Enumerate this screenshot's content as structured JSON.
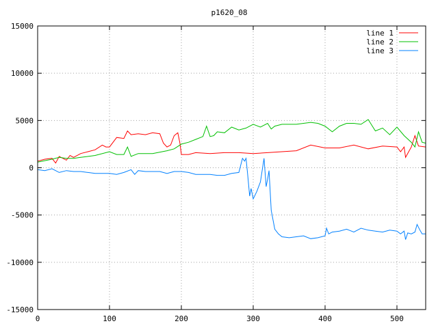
{
  "chart_data": {
    "type": "line",
    "title": "p1620_08",
    "xlabel": "",
    "ylabel": "",
    "xlim": [
      0,
      540
    ],
    "ylim": [
      -15000,
      15000
    ],
    "xticks": [
      0,
      100,
      200,
      300,
      400,
      500
    ],
    "yticks": [
      15000,
      10000,
      5000,
      0,
      -5000,
      -10000,
      -15000
    ],
    "grid": true,
    "legend_position": "top-right",
    "series": [
      {
        "name": "line 1",
        "color": "#ff0000",
        "x": [
          0,
          10,
          20,
          25,
          30,
          40,
          45,
          50,
          60,
          70,
          80,
          90,
          95,
          100,
          110,
          120,
          125,
          130,
          140,
          150,
          160,
          170,
          175,
          180,
          185,
          190,
          195,
          198,
          200,
          210,
          220,
          240,
          260,
          280,
          300,
          320,
          340,
          360,
          380,
          400,
          420,
          440,
          460,
          480,
          500,
          505,
          510,
          512,
          520,
          525,
          530,
          540
        ],
        "y": [
          700,
          900,
          1000,
          500,
          1200,
          800,
          1300,
          1100,
          1500,
          1700,
          1900,
          2400,
          2200,
          2200,
          3200,
          3100,
          3900,
          3500,
          3600,
          3500,
          3700,
          3600,
          2600,
          2200,
          2400,
          3400,
          3700,
          2600,
          1400,
          1400,
          1600,
          1500,
          1600,
          1600,
          1500,
          1600,
          1700,
          1800,
          2400,
          2100,
          2100,
          2400,
          2000,
          2300,
          2200,
          1700,
          2200,
          1100,
          2200,
          3400,
          2300,
          2200
        ]
      },
      {
        "name": "line 2",
        "color": "#00c000",
        "x": [
          0,
          20,
          30,
          40,
          50,
          60,
          80,
          100,
          110,
          120,
          125,
          130,
          140,
          150,
          160,
          180,
          190,
          200,
          210,
          220,
          230,
          235,
          240,
          245,
          250,
          260,
          270,
          280,
          290,
          300,
          310,
          320,
          325,
          330,
          340,
          360,
          380,
          390,
          400,
          410,
          420,
          430,
          440,
          450,
          460,
          470,
          480,
          490,
          500,
          510,
          520,
          525,
          530,
          535,
          540
        ],
        "y": [
          600,
          900,
          1100,
          1000,
          1000,
          1100,
          1300,
          1700,
          1400,
          1400,
          2200,
          1200,
          1500,
          1500,
          1500,
          1800,
          2000,
          2500,
          2700,
          3000,
          3300,
          4400,
          3300,
          3400,
          3800,
          3700,
          4300,
          4000,
          4200,
          4600,
          4300,
          4700,
          4100,
          4400,
          4600,
          4600,
          4800,
          4700,
          4400,
          3800,
          4400,
          4700,
          4700,
          4600,
          5100,
          3900,
          4200,
          3500,
          4300,
          3400,
          2700,
          2200,
          3800,
          2700,
          2600
        ]
      },
      {
        "name": "line 3",
        "color": "#0080ff",
        "x": [
          0,
          10,
          20,
          30,
          40,
          50,
          60,
          70,
          80,
          100,
          110,
          120,
          130,
          135,
          140,
          150,
          160,
          170,
          180,
          190,
          200,
          210,
          220,
          240,
          250,
          260,
          270,
          280,
          285,
          288,
          290,
          292,
          295,
          297,
          300,
          305,
          310,
          315,
          318,
          320,
          322,
          325,
          330,
          335,
          340,
          350,
          360,
          370,
          380,
          390,
          400,
          402,
          405,
          410,
          420,
          430,
          440,
          450,
          460,
          470,
          480,
          490,
          500,
          505,
          510,
          512,
          515,
          520,
          525,
          528,
          532,
          535,
          540
        ],
        "y": [
          -200,
          -300,
          -100,
          -500,
          -300,
          -400,
          -400,
          -500,
          -600,
          -600,
          -700,
          -500,
          -200,
          -700,
          -300,
          -400,
          -400,
          -400,
          -600,
          -400,
          -400,
          -500,
          -700,
          -700,
          -800,
          -800,
          -600,
          -500,
          1000,
          700,
          1000,
          -500,
          -3000,
          -2200,
          -3300,
          -2500,
          -1500,
          1000,
          -2000,
          -1200,
          -300,
          -4500,
          -6500,
          -7000,
          -7300,
          -7400,
          -7300,
          -7200,
          -7500,
          -7400,
          -7200,
          -6400,
          -7000,
          -6800,
          -6700,
          -6500,
          -6800,
          -6400,
          -6600,
          -6700,
          -6800,
          -6600,
          -6700,
          -7000,
          -6700,
          -7600,
          -6900,
          -7000,
          -6800,
          -6000,
          -6600,
          -7000,
          -7000
        ]
      }
    ]
  }
}
